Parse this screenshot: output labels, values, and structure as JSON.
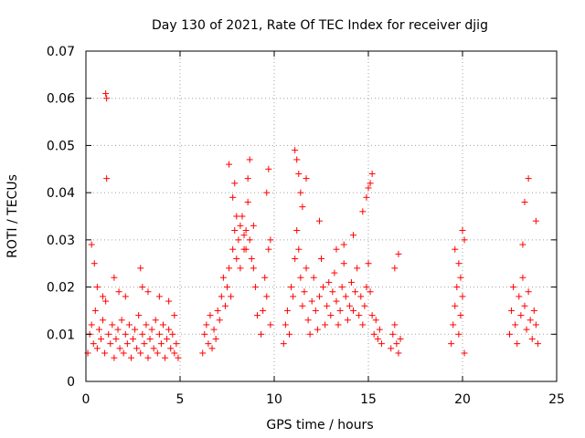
{
  "chart_data": {
    "type": "scatter",
    "title": "Day 130 of 2021, Rate Of TEC Index for receiver djig",
    "xlabel": "GPS time / hours",
    "ylabel": "ROTI / TECUs",
    "xlim": [
      0,
      25
    ],
    "ylim": [
      0,
      0.07
    ],
    "xticks": [
      0,
      5,
      10,
      15,
      20,
      25
    ],
    "xtick_labels": [
      "0",
      "5",
      "10",
      "15",
      "20",
      "25"
    ],
    "yticks": [
      0,
      0.01,
      0.02,
      0.03,
      0.04,
      0.05,
      0.06,
      0.07
    ],
    "ytick_labels": [
      "0",
      "0.01",
      "0.02",
      "0.03",
      "0.04",
      "0.05",
      "0.06",
      "0.07"
    ],
    "grid": true,
    "marker": "+",
    "series": [
      {
        "name": "ROTI",
        "color": "#ff0000",
        "x": [
          0.1,
          0.2,
          0.3,
          0.4,
          0.5,
          0.6,
          0.7,
          0.8,
          0.9,
          1.0,
          1.05,
          1.1,
          1.2,
          1.3,
          1.4,
          1.5,
          1.6,
          1.7,
          1.8,
          1.9,
          2.0,
          2.1,
          2.2,
          2.3,
          2.4,
          2.5,
          2.6,
          2.7,
          2.8,
          2.9,
          3.0,
          3.1,
          3.2,
          3.3,
          3.4,
          3.5,
          3.6,
          3.7,
          3.8,
          3.9,
          4.0,
          4.1,
          4.2,
          4.3,
          4.4,
          4.5,
          4.6,
          4.7,
          4.8,
          4.9,
          0.3,
          0.45,
          0.6,
          0.9,
          1.05,
          1.1,
          1.5,
          1.75,
          2.1,
          2.9,
          3.0,
          3.3,
          3.9,
          4.4,
          4.7,
          6.2,
          6.3,
          6.4,
          6.5,
          6.6,
          6.7,
          6.8,
          6.9,
          7.0,
          7.1,
          7.2,
          7.3,
          7.4,
          7.5,
          7.6,
          7.7,
          7.8,
          7.9,
          8.0,
          8.1,
          8.2,
          8.3,
          8.4,
          8.5,
          8.6,
          8.7,
          8.8,
          8.9,
          9.0,
          9.1,
          9.3,
          9.4,
          9.5,
          9.6,
          9.7,
          9.8,
          7.6,
          7.8,
          7.9,
          8.0,
          8.2,
          8.4,
          8.5,
          8.6,
          8.7,
          8.9,
          9.6,
          9.7,
          9.8,
          10.5,
          10.6,
          10.7,
          10.8,
          10.9,
          11.0,
          11.1,
          11.2,
          11.3,
          11.4,
          11.5,
          11.6,
          11.7,
          11.8,
          11.9,
          12.0,
          12.1,
          12.2,
          12.3,
          12.4,
          12.5,
          12.6,
          12.7,
          12.8,
          12.9,
          13.0,
          13.1,
          13.2,
          13.3,
          13.4,
          13.5,
          13.6,
          13.7,
          13.8,
          13.9,
          14.0,
          14.1,
          14.2,
          14.3,
          14.4,
          14.5,
          14.6,
          14.7,
          14.8,
          14.9,
          15.0,
          15.1,
          15.2,
          15.3,
          15.4,
          15.5,
          15.6,
          15.7,
          11.1,
          11.2,
          11.3,
          11.4,
          11.5,
          11.7,
          12.4,
          13.3,
          13.7,
          14.2,
          14.7,
          14.9,
          15.0,
          15.1,
          15.2,
          16.2,
          16.3,
          16.4,
          16.5,
          16.6,
          16.7,
          16.4,
          16.6,
          19.4,
          19.5,
          19.6,
          19.7,
          19.8,
          19.9,
          20.0,
          20.1,
          19.6,
          19.8,
          19.9,
          20.0,
          20.1,
          22.5,
          22.6,
          22.7,
          22.8,
          22.9,
          23.0,
          23.1,
          23.2,
          23.3,
          23.4,
          23.5,
          23.6,
          23.7,
          23.8,
          23.9,
          24.0,
          23.2,
          23.3,
          23.5,
          23.9
        ],
        "y": [
          0.006,
          0.01,
          0.012,
          0.008,
          0.015,
          0.007,
          0.011,
          0.009,
          0.013,
          0.006,
          0.061,
          0.043,
          0.01,
          0.008,
          0.012,
          0.005,
          0.009,
          0.011,
          0.007,
          0.013,
          0.006,
          0.01,
          0.008,
          0.012,
          0.005,
          0.009,
          0.011,
          0.007,
          0.014,
          0.006,
          0.01,
          0.008,
          0.012,
          0.005,
          0.009,
          0.011,
          0.007,
          0.013,
          0.006,
          0.01,
          0.008,
          0.012,
          0.005,
          0.009,
          0.011,
          0.007,
          0.01,
          0.006,
          0.008,
          0.005,
          0.029,
          0.025,
          0.02,
          0.018,
          0.017,
          0.06,
          0.022,
          0.019,
          0.018,
          0.024,
          0.02,
          0.019,
          0.018,
          0.017,
          0.014,
          0.006,
          0.01,
          0.012,
          0.008,
          0.014,
          0.007,
          0.011,
          0.009,
          0.015,
          0.013,
          0.018,
          0.022,
          0.016,
          0.02,
          0.024,
          0.018,
          0.028,
          0.032,
          0.026,
          0.03,
          0.024,
          0.035,
          0.028,
          0.032,
          0.038,
          0.03,
          0.026,
          0.024,
          0.02,
          0.014,
          0.01,
          0.015,
          0.022,
          0.018,
          0.028,
          0.012,
          0.046,
          0.039,
          0.042,
          0.035,
          0.033,
          0.031,
          0.028,
          0.043,
          0.047,
          0.033,
          0.04,
          0.045,
          0.03,
          0.008,
          0.012,
          0.015,
          0.01,
          0.02,
          0.018,
          0.026,
          0.032,
          0.028,
          0.022,
          0.016,
          0.019,
          0.024,
          0.013,
          0.01,
          0.017,
          0.022,
          0.015,
          0.011,
          0.018,
          0.026,
          0.02,
          0.012,
          0.016,
          0.021,
          0.014,
          0.019,
          0.023,
          0.017,
          0.012,
          0.015,
          0.02,
          0.025,
          0.018,
          0.013,
          0.016,
          0.021,
          0.015,
          0.019,
          0.024,
          0.014,
          0.018,
          0.012,
          0.016,
          0.02,
          0.025,
          0.019,
          0.014,
          0.01,
          0.013,
          0.009,
          0.011,
          0.008,
          0.049,
          0.047,
          0.044,
          0.04,
          0.037,
          0.043,
          0.034,
          0.028,
          0.029,
          0.031,
          0.036,
          0.039,
          0.041,
          0.042,
          0.044,
          0.007,
          0.01,
          0.012,
          0.008,
          0.006,
          0.009,
          0.024,
          0.027,
          0.008,
          0.012,
          0.016,
          0.02,
          0.01,
          0.014,
          0.018,
          0.006,
          0.028,
          0.025,
          0.022,
          0.032,
          0.03,
          0.01,
          0.015,
          0.02,
          0.012,
          0.008,
          0.018,
          0.014,
          0.022,
          0.016,
          0.011,
          0.019,
          0.013,
          0.009,
          0.015,
          0.012,
          0.008,
          0.029,
          0.038,
          0.043,
          0.034
        ]
      }
    ]
  }
}
